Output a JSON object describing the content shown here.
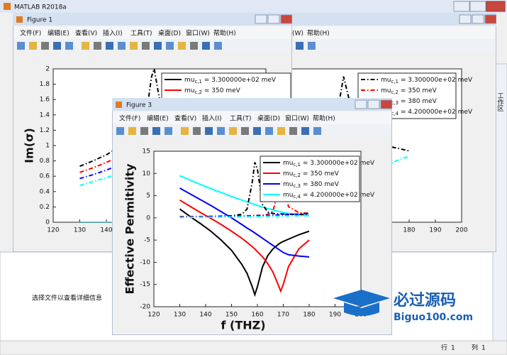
{
  "app": {
    "title": "MATLAB R2018a",
    "details_hint": "选择文件以查看详细信息",
    "side_tab": "工作区",
    "status": {
      "row_label": "行",
      "row": 1,
      "col_label": "列",
      "col": 1
    },
    "watermark": {
      "name": "必过源码",
      "site": "Biguo100.com"
    }
  },
  "figure_menu": [
    "文件(F)",
    "编辑(E)",
    "查看(V)",
    "插入(I)",
    "工具(T)",
    "桌面(D)",
    "窗口(W)",
    "帮助(H)"
  ],
  "windows": [
    {
      "title": "Figure 1",
      "chart": {
        "type": "line",
        "ylabel": "Im(σ)",
        "x": [
          130,
          135,
          140,
          145,
          150,
          155,
          157,
          158,
          159,
          160
        ],
        "series": [
          {
            "name": "mu_{c,1} = 3.300000e+02 meV",
            "color": "#000000",
            "style": "solid",
            "values": [
              0,
              0,
              0,
              0,
              0,
              0,
              0,
              0,
              0,
              0
            ]
          },
          {
            "name": "mu_{c,2} = 350 meV",
            "color": "#ff0000",
            "style": "solid",
            "values": [
              0,
              0,
              0,
              0,
              0,
              0,
              0,
              0,
              0,
              0
            ]
          },
          {
            "name": "mu_{c,3} = 380 meV",
            "color": "#0000ff",
            "style": "solid",
            "values": [
              0,
              0,
              0,
              0,
              0,
              0,
              0,
              0,
              0,
              0
            ]
          },
          {
            "name": "mu_{c,4} = 4.200000e+02 meV",
            "color": "#00ffff",
            "style": "solid",
            "values": [
              0,
              0,
              0,
              0,
              0,
              0,
              0,
              0,
              0,
              0
            ]
          },
          {
            "color": "#000000",
            "style": "dashdot",
            "values": [
              0.73,
              0.8,
              0.88,
              0.98,
              1.1,
              1.4,
              1.9,
              2,
              1.8,
              1.6
            ]
          },
          {
            "color": "#ff0000",
            "style": "dashdot",
            "values": [
              0.65,
              0.71,
              0.78,
              0.86,
              0.95,
              1.05,
              1.1,
              1.13,
              1.15,
              1.17
            ]
          },
          {
            "color": "#0000ff",
            "style": "dashdot",
            "values": [
              0.57,
              0.62,
              0.68,
              0.75,
              0.83,
              0.92,
              0.96,
              0.98,
              1.0,
              1.02
            ]
          },
          {
            "color": "#00ffff",
            "style": "dashdot",
            "values": [
              0.48,
              0.53,
              0.58,
              0.64,
              0.71,
              0.78,
              0.82,
              0.84,
              0.86,
              0.88
            ]
          }
        ],
        "xlim": [
          120,
          200
        ],
        "xticks": [
          120,
          130,
          140,
          150,
          160,
          170,
          180,
          190,
          200
        ],
        "ylim": [
          0,
          2
        ],
        "yticks": [
          0,
          0.2,
          0.4,
          0.6,
          0.8,
          1,
          1.2,
          1.4,
          1.6,
          1.8,
          2
        ]
      }
    },
    {
      "chart": {
        "type": "line",
        "x": [
          150,
          155,
          160,
          165,
          170,
          175,
          180
        ],
        "series": [
          {
            "name": "mu_{c,1} = 3.300000e+02 meV",
            "color": "#000000",
            "style": "dashdot",
            "values": [
              0.9,
              1.9,
              1.2,
              1.1,
              1.0,
              0.97,
              0.93
            ]
          },
          {
            "name": "mu_{c,2} = 350 meV",
            "color": "#ff0000",
            "style": "dashdot",
            "values": [
              0.95,
              1.0,
              1.05,
              1.1,
              1.2,
              1.5,
              1.95
            ]
          },
          {
            "name": "mu_{c,3} = 380 meV",
            "color": "#0000ff",
            "style": "dashdot",
            "values": [
              0.85,
              0.9,
              0.95,
              1.05,
              1.2,
              1.45,
              1.7
            ]
          },
          {
            "name": "mu_{c,4} = 4.200000e+02 meV",
            "color": "#00ffff",
            "style": "dashdot",
            "values": [
              0.55,
              0.6,
              0.63,
              0.67,
              0.72,
              0.8,
              0.86
            ]
          }
        ],
        "xlim": [
          120,
          200
        ],
        "xticks": [
          180,
          190,
          200
        ],
        "ylim": [
          0,
          2
        ]
      }
    },
    {
      "title": "Figure 3",
      "chart": {
        "type": "line",
        "xlabel": "f (THZ)",
        "ylabel": "Effective Permitivity",
        "x": [
          130,
          134,
          138,
          142,
          146,
          150,
          154,
          156,
          158,
          159,
          160,
          162,
          164,
          166,
          168,
          169,
          170,
          172,
          176,
          180
        ],
        "series": [
          {
            "name": "mu_{c,1} = 3.300000e+02 meV",
            "color": "#000000",
            "style": "solid",
            "values": [
              2,
              0.3,
              -1.3,
              -3,
              -5,
              -7.3,
              -10.5,
              -12.5,
              -15.5,
              -17.3,
              -15.5,
              -11,
              -8.5,
              -7,
              -6,
              -5.6,
              -5.3,
              -4.8,
              -3.8,
              -3
            ]
          },
          {
            "name": "mu_{c,2} = 350 meV",
            "color": "#ff0000",
            "style": "solid",
            "values": [
              4,
              2.6,
              1.2,
              -0.1,
              -1.5,
              -3,
              -4.6,
              -5.5,
              -6.5,
              -7,
              -7.6,
              -8.8,
              -10.3,
              -12.2,
              -15,
              -16.5,
              -15,
              -11,
              -7,
              -5
            ]
          },
          {
            "name": "mu_{c,3} = 380 meV",
            "color": "#0000ff",
            "style": "solid",
            "values": [
              6.7,
              5.4,
              4.1,
              2.8,
              1.4,
              0,
              -1.5,
              -2.3,
              -3,
              -3.4,
              -3.8,
              -4.6,
              -5.4,
              -6.2,
              -7,
              -7.4,
              -7.8,
              -8.3,
              -8.6,
              -8.8
            ]
          },
          {
            "name": "mu_{c,4} = 4.200000e+02 meV",
            "color": "#00ffff",
            "style": "solid",
            "values": [
              9.5,
              8.5,
              7.5,
              6.6,
              5.7,
              4.8,
              4,
              3.6,
              3.2,
              3,
              2.8,
              2.4,
              2.1,
              1.8,
              1.5,
              1.35,
              1.2,
              1,
              0.7,
              0.5
            ]
          },
          {
            "color": "#000000",
            "style": "dashdot",
            "values": [
              0.2,
              0.2,
              0.25,
              0.3,
              0.4,
              0.5,
              0.8,
              2,
              8,
              12.5,
              11,
              3,
              1.3,
              1,
              0.9,
              0.9,
              0.85,
              0.8,
              0.8,
              0.8
            ]
          },
          {
            "color": "#ff0000",
            "style": "dashdot",
            "values": [
              0.3,
              0.3,
              0.3,
              0.35,
              0.35,
              0.4,
              0.4,
              0.45,
              0.5,
              0.5,
              0.55,
              0.6,
              0.8,
              1.5,
              6,
              12,
              10,
              2.5,
              1.2,
              1
            ]
          },
          {
            "color": "#0000ff",
            "style": "dashdot",
            "values": [
              0.2,
              0.2,
              0.25,
              0.3,
              0.3,
              0.35,
              0.4,
              0.4,
              0.45,
              0.45,
              0.5,
              0.5,
              0.55,
              0.6,
              0.65,
              0.7,
              0.7,
              0.75,
              0.85,
              1
            ]
          },
          {
            "color": "#00ffff",
            "style": "dashdot",
            "values": [
              0.1,
              0.1,
              0.15,
              0.15,
              0.2,
              0.2,
              0.25,
              0.25,
              0.3,
              0.3,
              0.3,
              0.3,
              0.35,
              0.35,
              0.4,
              0.4,
              0.4,
              0.45,
              0.45,
              0.5
            ]
          }
        ],
        "xlim": [
          120,
          200
        ],
        "xticks": [
          120,
          130,
          140,
          150,
          160,
          170,
          180,
          190,
          200
        ],
        "ylim": [
          -20,
          15
        ],
        "yticks": [
          -20,
          -15,
          -10,
          -5,
          0,
          5,
          10,
          15
        ]
      }
    }
  ]
}
